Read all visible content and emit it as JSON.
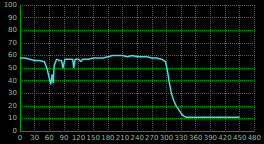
{
  "chart_data": {
    "type": "line",
    "color": "#40e0e0",
    "grid": true,
    "x": [
      0,
      10,
      20,
      30,
      40,
      50,
      55,
      60,
      63,
      66,
      68,
      70,
      75,
      80,
      85,
      88,
      92,
      100,
      108,
      110,
      113,
      120,
      125,
      128,
      140,
      150,
      160,
      170,
      180,
      190,
      200,
      210,
      220,
      230,
      240,
      250,
      260,
      270,
      280,
      290,
      298,
      302,
      306,
      310,
      315,
      320,
      325,
      330,
      335,
      340,
      360,
      400,
      450
    ],
    "values": [
      58,
      58,
      57,
      56,
      56,
      55,
      50,
      42,
      37,
      45,
      38,
      52,
      57,
      56,
      56,
      50,
      57,
      57,
      57,
      50,
      57,
      57,
      55,
      57,
      57,
      58,
      58,
      58,
      59,
      60,
      60,
      60,
      59,
      60,
      59,
      59,
      59,
      58,
      58,
      57,
      55,
      48,
      38,
      30,
      24,
      20,
      17,
      14,
      12,
      11,
      11,
      11,
      11
    ],
    "xlim": [
      0,
      480
    ],
    "xticks": [
      0,
      30,
      60,
      90,
      120,
      150,
      180,
      210,
      240,
      270,
      300,
      330,
      360,
      390,
      420,
      450,
      480
    ],
    "ylim": [
      0,
      100
    ],
    "yticks": [
      0,
      10,
      20,
      30,
      40,
      50,
      60,
      70,
      80,
      90,
      100
    ]
  }
}
